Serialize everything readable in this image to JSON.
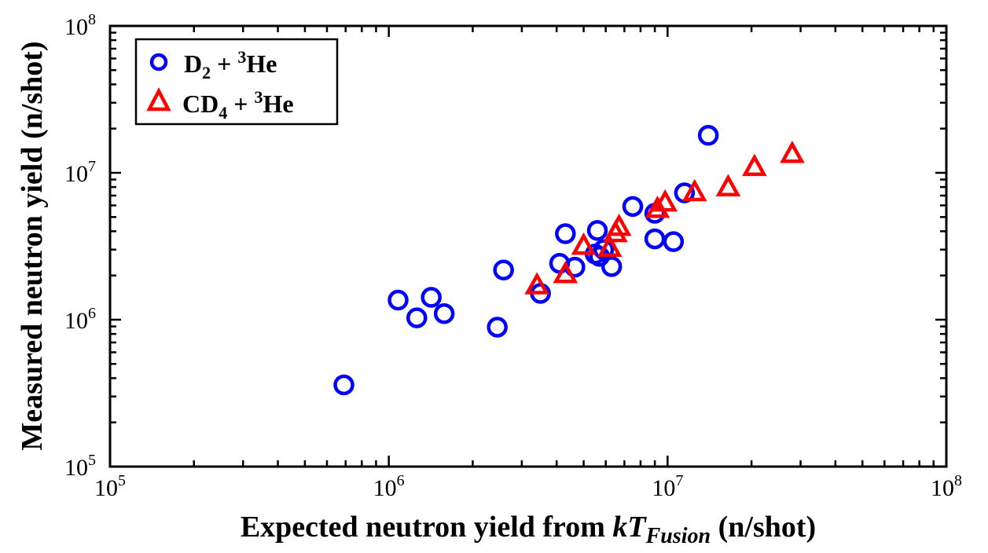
{
  "chart_data": {
    "type": "scatter",
    "xscale": "log",
    "yscale": "log",
    "xlim": [
      100000,
      100000000
    ],
    "ylim": [
      100000,
      100000000
    ],
    "xlabel": {
      "prefix": "Expected neutron yield from ",
      "italic_main": "kT",
      "italic_sub": "Fusion",
      "suffix": " (n/shot)"
    },
    "ylabel": "Measured neutron yield (n/shot)",
    "xticks": [
      {
        "base": "10",
        "exp": "5"
      },
      {
        "base": "10",
        "exp": "6"
      },
      {
        "base": "10",
        "exp": "7"
      },
      {
        "base": "10",
        "exp": "8"
      }
    ],
    "yticks": [
      {
        "base": "10",
        "exp": "5"
      },
      {
        "base": "10",
        "exp": "6"
      },
      {
        "base": "10",
        "exp": "7"
      },
      {
        "base": "10",
        "exp": "8"
      }
    ],
    "grid": false,
    "legend_position": "top-left",
    "series": [
      {
        "name": {
          "a": "D",
          "a_sub": "2",
          "b": " + ",
          "b_sup": "3",
          "c": "He"
        },
        "marker": "circle",
        "color": "#0000ff",
        "points": [
          [
            690000,
            360000
          ],
          [
            1080000,
            1360000
          ],
          [
            1260000,
            1030000
          ],
          [
            1420000,
            1420000
          ],
          [
            1580000,
            1100000
          ],
          [
            2450000,
            890000
          ],
          [
            2580000,
            2180000
          ],
          [
            3500000,
            1510000
          ],
          [
            4100000,
            2420000
          ],
          [
            4300000,
            3850000
          ],
          [
            4650000,
            2280000
          ],
          [
            5500000,
            2800000
          ],
          [
            5600000,
            4050000
          ],
          [
            5700000,
            2700000
          ],
          [
            5900000,
            3000000
          ],
          [
            6300000,
            2300000
          ],
          [
            7500000,
            5900000
          ],
          [
            9000000,
            5300000
          ],
          [
            9000000,
            3550000
          ],
          [
            10500000,
            3400000
          ],
          [
            11500000,
            7300000
          ],
          [
            14000000,
            18000000
          ]
        ]
      },
      {
        "name": {
          "a": "CD",
          "a_sub": "4",
          "b": " + ",
          "b_sup": "3",
          "c": "He"
        },
        "marker": "triangle",
        "color": "#ff0000",
        "points": [
          [
            3400000,
            1720000
          ],
          [
            4300000,
            2050000
          ],
          [
            5000000,
            3200000
          ],
          [
            6200000,
            3100000
          ],
          [
            6500000,
            3900000
          ],
          [
            6700000,
            4300000
          ],
          [
            9200000,
            5700000
          ],
          [
            9800000,
            6300000
          ],
          [
            12500000,
            7400000
          ],
          [
            16500000,
            8000000
          ],
          [
            20500000,
            11000000
          ],
          [
            28000000,
            13500000
          ]
        ]
      }
    ]
  }
}
